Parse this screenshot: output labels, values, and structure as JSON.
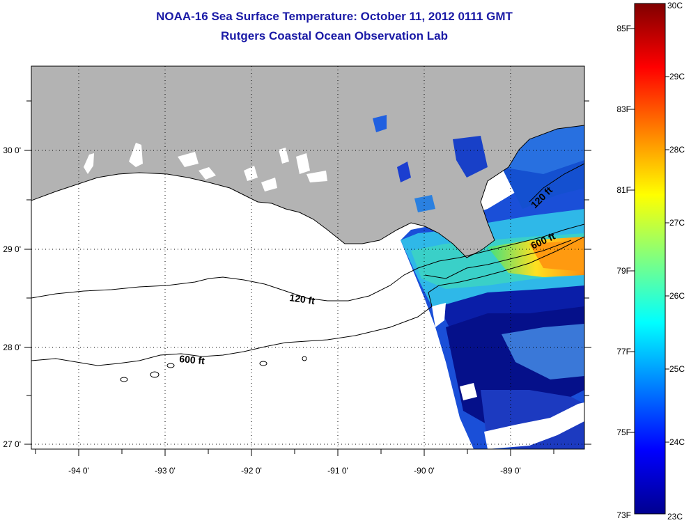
{
  "title": "NOAA-16 Sea Surface Temperature:  October 11, 2012 0111 GMT",
  "subtitle": "Rutgers Coastal Ocean Observation Lab",
  "map": {
    "lon_labels": [
      "-94 0'",
      "-93 0'",
      "-92 0'",
      "-91 0'",
      "-90 0'",
      "-89 0'"
    ],
    "lat_labels": [
      "30 0'",
      "29 0'",
      "28 0'",
      "27 0'"
    ],
    "contours": [
      {
        "depth": "120 ft",
        "label": "120 ft"
      },
      {
        "depth": "600 ft",
        "label": "600 ft"
      }
    ],
    "colors": {
      "land": "#b3b3b3",
      "no_data": "#ffffff",
      "coast": "#000000"
    }
  },
  "colorbar": {
    "fahrenheit_labels": [
      "85F",
      "83F",
      "81F",
      "79F",
      "77F",
      "75F",
      "73F"
    ],
    "celsius_labels": [
      "30C",
      "29C",
      "28C",
      "27C",
      "26C",
      "25C",
      "24C",
      "23C"
    ],
    "colormap": [
      "#00008f",
      "#0000ff",
      "#0080ff",
      "#00ffff",
      "#80ff80",
      "#ffff00",
      "#ff8000",
      "#ff0000",
      "#800000"
    ]
  }
}
